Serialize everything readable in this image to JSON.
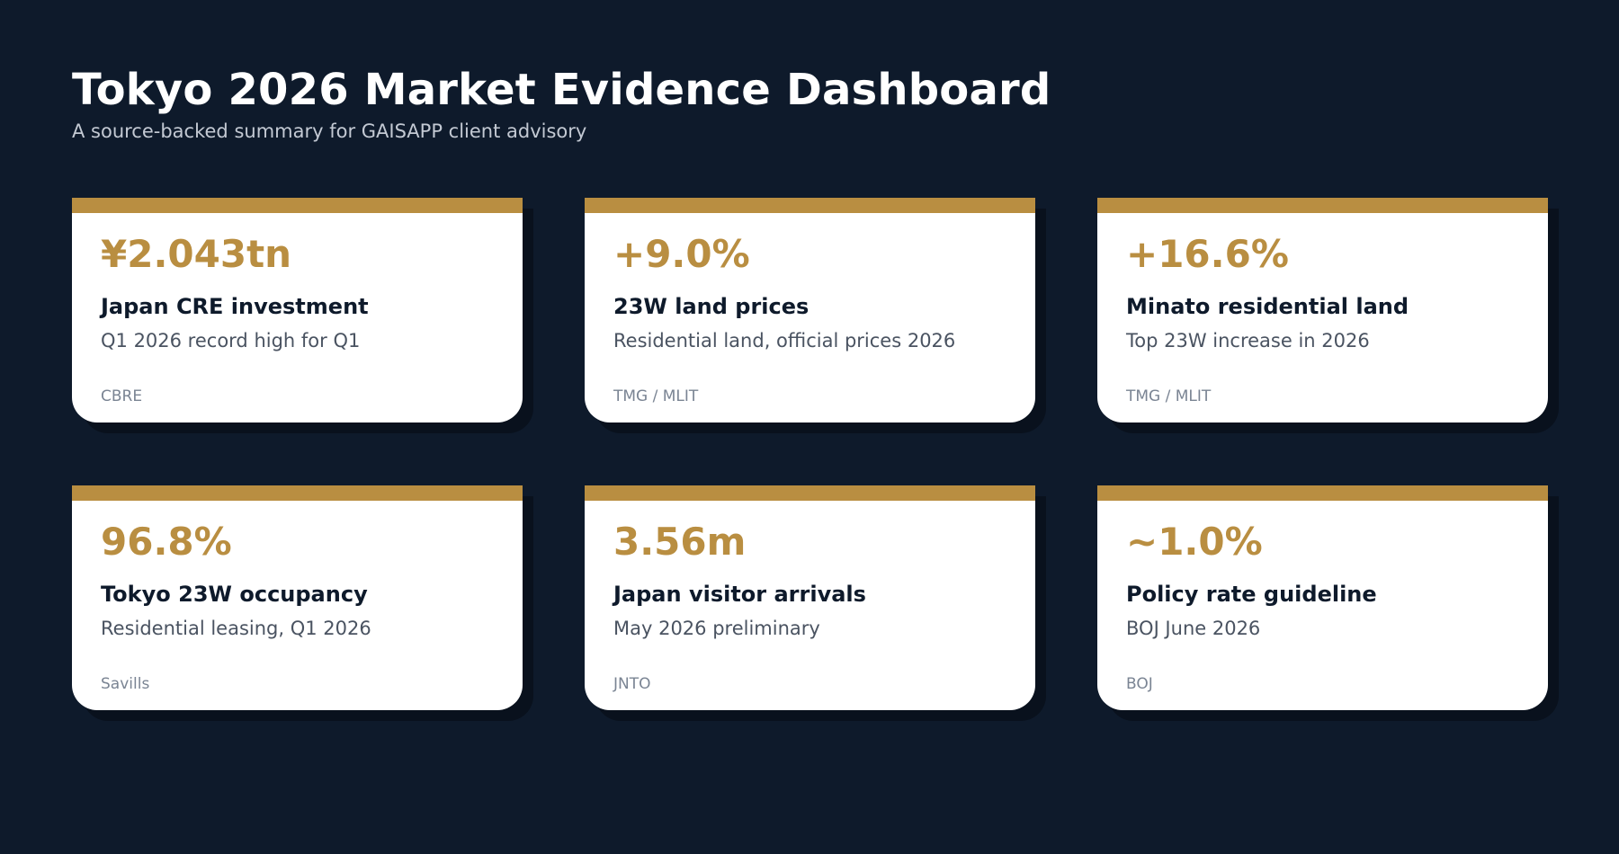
{
  "header": {
    "title": "Tokyo 2026 Market Evidence Dashboard",
    "subtitle": "A source-backed summary for GAISAPP client advisory"
  },
  "colors": {
    "background": "#0e1a2b",
    "accent": "#b98e41",
    "card": "#ffffff"
  },
  "cards": [
    {
      "value": "¥2.043tn",
      "label": "Japan CRE investment",
      "description": "Q1 2026 record high for Q1",
      "source": "CBRE"
    },
    {
      "value": "+9.0%",
      "label": "23W land prices",
      "description": "Residential land, official prices 2026",
      "source": "TMG / MLIT"
    },
    {
      "value": "+16.6%",
      "label": "Minato residential land",
      "description": "Top 23W increase in 2026",
      "source": "TMG / MLIT"
    },
    {
      "value": "96.8%",
      "label": "Tokyo 23W occupancy",
      "description": "Residential leasing, Q1 2026",
      "source": "Savills"
    },
    {
      "value": "3.56m",
      "label": "Japan visitor arrivals",
      "description": "May 2026 preliminary",
      "source": "JNTO"
    },
    {
      "value": "~1.0%",
      "label": "Policy rate guideline",
      "description": "BOJ June 2026",
      "source": "BOJ"
    }
  ]
}
